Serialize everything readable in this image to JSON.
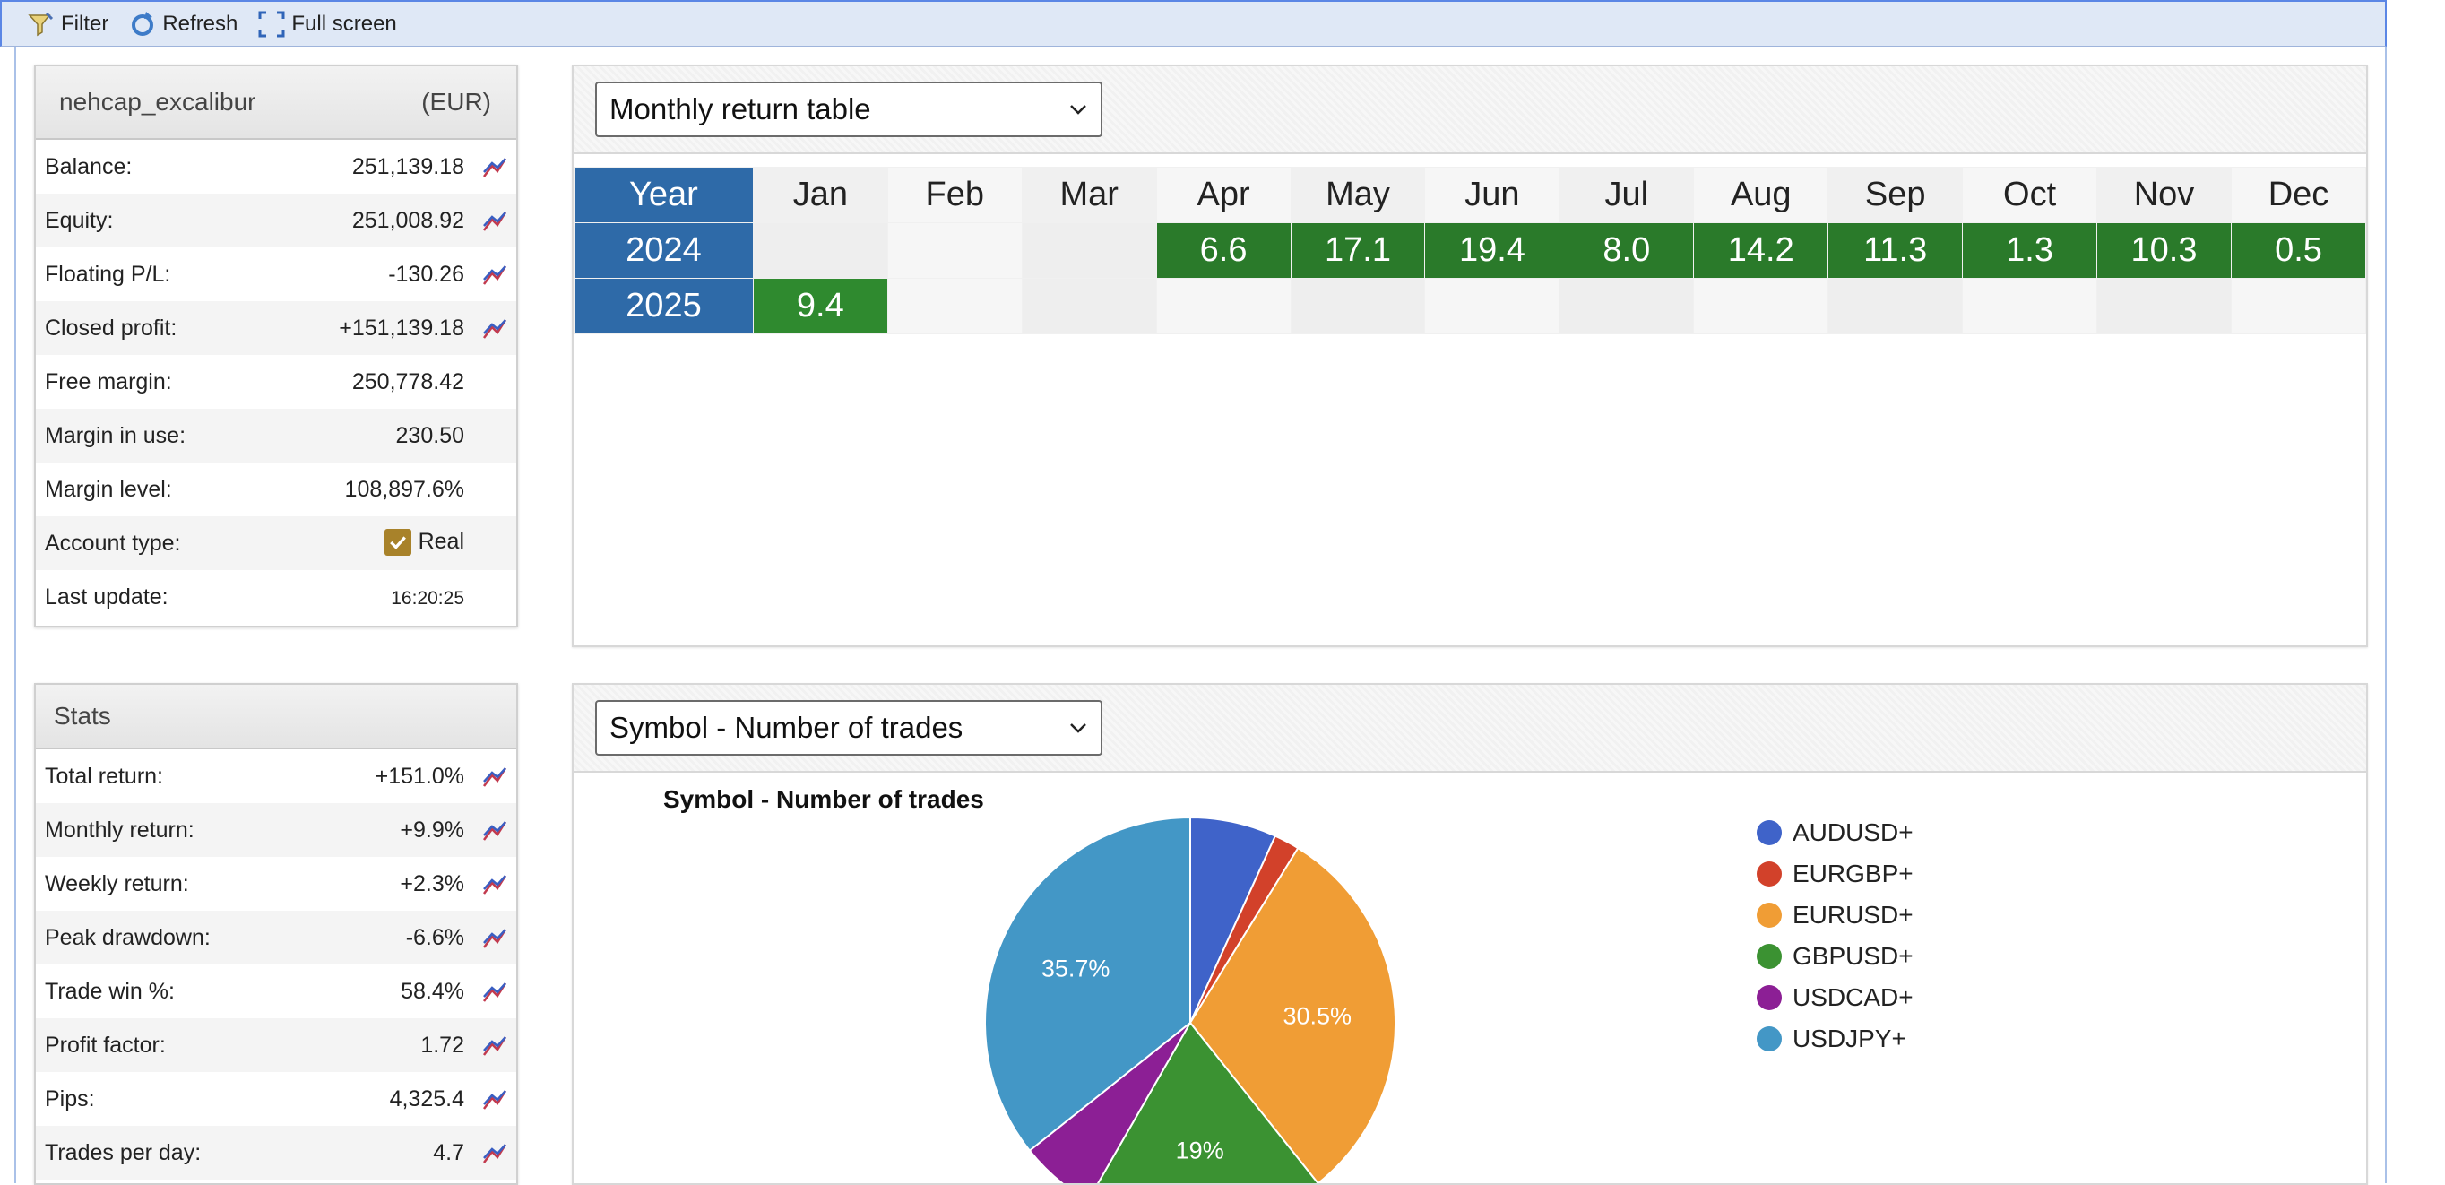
{
  "toolbar": {
    "filter": "Filter",
    "refresh": "Refresh",
    "fullscreen": "Full screen"
  },
  "account": {
    "name": "nehcap_excalibur",
    "currency": "(EUR)",
    "rows": [
      {
        "label": "Balance:",
        "value": "251,139.18",
        "chart": true
      },
      {
        "label": "Equity:",
        "value": "251,008.92",
        "chart": true
      },
      {
        "label": "Floating P/L:",
        "value": "-130.26",
        "chart": true
      },
      {
        "label": "Closed profit:",
        "value": "+151,139.18",
        "chart": true
      },
      {
        "label": "Free margin:",
        "value": "250,778.42",
        "chart": false
      },
      {
        "label": "Margin in use:",
        "value": "230.50",
        "chart": false
      },
      {
        "label": "Margin level:",
        "value": "108,897.6%",
        "chart": false
      },
      {
        "label": "Account type:",
        "value": "Real",
        "chart": false
      },
      {
        "label": "Last update:",
        "value": "16:20:25",
        "chart": false
      }
    ]
  },
  "stats": {
    "title": "Stats",
    "rows": [
      {
        "label": "Total return:",
        "value": "+151.0%"
      },
      {
        "label": "Monthly return:",
        "value": "+9.9%"
      },
      {
        "label": "Weekly return:",
        "value": "+2.3%"
      },
      {
        "label": "Peak drawdown:",
        "value": "-6.6%"
      },
      {
        "label": "Trade win %:",
        "value": "58.4%"
      },
      {
        "label": "Profit factor:",
        "value": "1.72"
      },
      {
        "label": "Pips:",
        "value": "4,325.4"
      },
      {
        "label": "Trades per day:",
        "value": "4.7"
      }
    ]
  },
  "monthly": {
    "select": "Monthly return table",
    "year_header": "Year",
    "months": [
      "Jan",
      "Feb",
      "Mar",
      "Apr",
      "May",
      "Jun",
      "Jul",
      "Aug",
      "Sep",
      "Oct",
      "Nov",
      "Dec"
    ],
    "rows": [
      {
        "year": "2024",
        "values": [
          "",
          "",
          "",
          "6.6",
          "17.1",
          "19.4",
          "8.0",
          "14.2",
          "11.3",
          "1.3",
          "10.3",
          "0.5"
        ]
      },
      {
        "year": "2025",
        "values": [
          "9.4",
          "",
          "",
          "",
          "",
          "",
          "",
          "",
          "",
          "",
          "",
          ""
        ]
      }
    ]
  },
  "symbol": {
    "select": "Symbol - Number of trades"
  },
  "chart_data": {
    "type": "pie",
    "title": "Symbol - Number of trades",
    "categories": [
      "AUDUSD+",
      "EURGBP+",
      "EURUSD+",
      "GBPUSD+",
      "USDCAD+",
      "USDJPY+"
    ],
    "values": [
      6.8,
      2.0,
      30.5,
      19.0,
      6.0,
      35.7
    ],
    "value_labels": [
      "",
      "",
      "30.5%",
      "19%",
      "",
      "35.7%"
    ],
    "colors": [
      "#3f63c9",
      "#d2412a",
      "#f09d35",
      "#3b9232",
      "#8c1f95",
      "#4397c6"
    ],
    "legend": "right"
  }
}
